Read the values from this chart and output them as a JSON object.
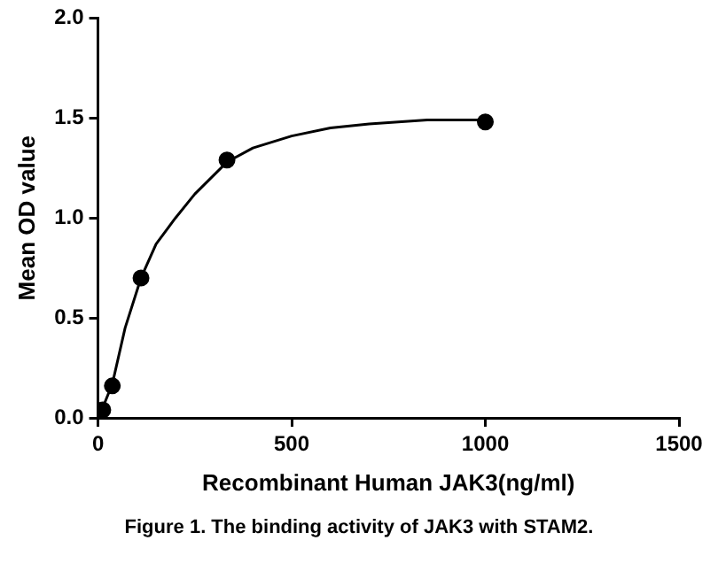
{
  "chart_data": {
    "type": "scatter",
    "xlabel": "Recombinant Human JAK3(ng/ml)",
    "ylabel": "Mean OD value",
    "annotations": [
      "Figure 1. The binding activity of JAK3 with STAM2."
    ],
    "xlim": [
      0,
      1500
    ],
    "xticks": [
      0,
      500,
      1000,
      1500
    ],
    "ylim": [
      0,
      2
    ],
    "yticks": [
      {
        "value": 0,
        "label": "0.0"
      },
      {
        "value": 0.5,
        "label": "0.5"
      },
      {
        "value": 1,
        "label": "1.0"
      },
      {
        "value": 1.5,
        "label": "1.5"
      },
      {
        "value": 2,
        "label": "2.0"
      }
    ],
    "grid": false,
    "legend": false,
    "marker": "circle",
    "series": [
      {
        "type": "scatter",
        "color": "#000000",
        "x": [
          12.3,
          37,
          111,
          333,
          1000
        ],
        "values": [
          0.04,
          0.16,
          0.7,
          1.29,
          1.48
        ]
      },
      {
        "type": "line",
        "color": "#000000",
        "marker": "none",
        "line_style": "solid",
        "x": [
          0,
          12,
          37,
          70,
          111,
          150,
          200,
          250,
          333,
          400,
          500,
          600,
          700,
          850,
          1000
        ],
        "values": [
          0,
          0.05,
          0.17,
          0.45,
          0.7,
          0.87,
          1.0,
          1.12,
          1.28,
          1.35,
          1.41,
          1.45,
          1.47,
          1.49,
          1.49
        ]
      }
    ]
  }
}
